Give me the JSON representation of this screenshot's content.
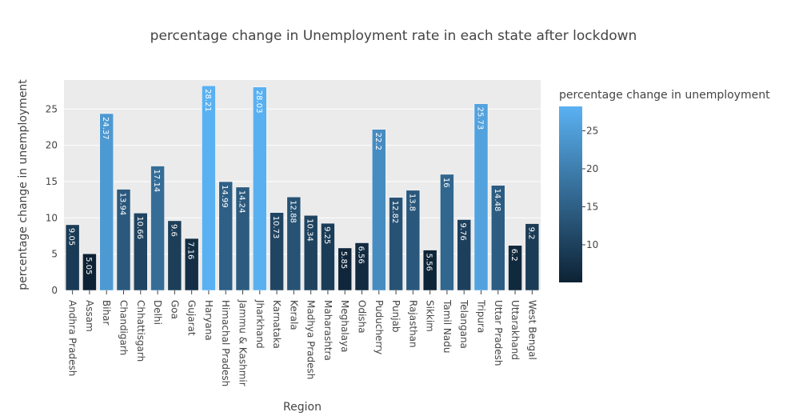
{
  "chart_data": {
    "type": "bar",
    "title": "percentage change in Unemployment rate in each state after lockdown",
    "xlabel": "Region",
    "ylabel": "percentage change in unemployment",
    "ylim": [
      0,
      29
    ],
    "yticks": [
      0,
      5,
      10,
      15,
      20,
      25
    ],
    "grid": true,
    "categories": [
      "Andhra Pradesh",
      "Assam",
      "Bihar",
      "Chandigarh",
      "Chhattisgarh",
      "Delhi",
      "Goa",
      "Gujarat",
      "Haryana",
      "Himachal Pradesh",
      "Jammu & Kashmir",
      "Jharkhand",
      "Karnataka",
      "Kerala",
      "Madhya Pradesh",
      "Maharashtra",
      "Meghalaya",
      "Odisha",
      "Puducherry",
      "Punjab",
      "Rajasthan",
      "Sikkim",
      "Tamil Nadu",
      "Telangana",
      "Tripura",
      "Uttar Pradesh",
      "Uttarakhand",
      "West Bengal"
    ],
    "values": [
      9.05,
      5.05,
      24.37,
      13.94,
      10.66,
      17.14,
      9.6,
      7.16,
      28.21,
      14.99,
      14.24,
      28.03,
      10.73,
      12.88,
      10.34,
      9.25,
      5.85,
      6.56,
      22.2,
      12.82,
      13.8,
      5.56,
      16,
      9.76,
      25.73,
      14.48,
      6.2,
      9.2
    ],
    "data_labels": [
      "9.05",
      "5.05",
      "24.37",
      "13.94",
      "10.66",
      "17.14",
      "9.6",
      "7.16",
      "28.21",
      "14.99",
      "14.24",
      "28.03",
      "10.73",
      "12.88",
      "10.34",
      "9.25",
      "5.85",
      "6.56",
      "22.2",
      "12.82",
      "13.8",
      "5.56",
      "16",
      "9.76",
      "25.73",
      "14.48",
      "6.2",
      "9.2"
    ],
    "colorbar": {
      "title": "percentage change in unemployment",
      "range": [
        5.05,
        28.21
      ],
      "ticks": [
        10,
        15,
        20,
        25
      ],
      "colors": [
        "#0d2234",
        "#5ab1f2"
      ]
    }
  }
}
